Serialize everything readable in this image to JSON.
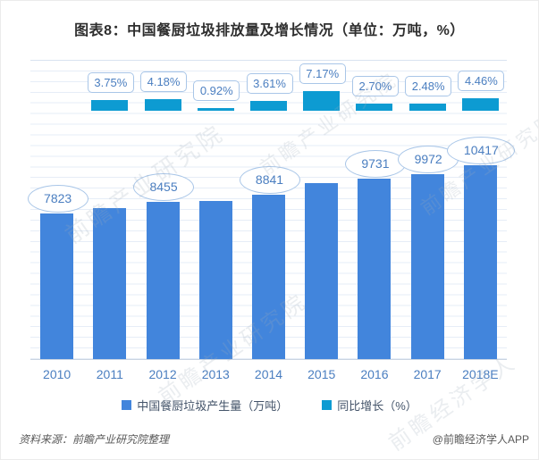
{
  "chart_data": {
    "type": "bar",
    "title": "图表8：中国餐厨垃圾排放量及增长情况（单位：万吨，%）",
    "categories": [
      "2010",
      "2011",
      "2012",
      "2013",
      "2014",
      "2015",
      "2016",
      "2017",
      "2018E"
    ],
    "series": [
      {
        "name": "中国餐厨垃圾产生量（万吨）",
        "axis": "left",
        "unit": "万吨",
        "color": "#4285dc",
        "values": [
          7823,
          8116,
          8455,
          8533,
          8841,
          9475,
          9731,
          9972,
          10417
        ],
        "data_labels": [
          "7823",
          null,
          "8455",
          null,
          "8841",
          null,
          "9731",
          "9972",
          "10417"
        ]
      },
      {
        "name": "同比增长（%）",
        "axis": "right",
        "unit": "%",
        "color": "#0d9bd2",
        "values": [
          null,
          3.75,
          4.18,
          0.92,
          3.61,
          7.17,
          2.7,
          2.48,
          4.46
        ],
        "data_labels": [
          null,
          "3.75%",
          "4.18%",
          "0.92%",
          "3.61%",
          "7.17%",
          "2.70%",
          "2.48%",
          "4.46%"
        ]
      }
    ],
    "grid": true,
    "axes_tick_labels_visible": false,
    "legend_position": "bottom"
  },
  "footer": {
    "source": "资料来源：前瞻产业研究院整理",
    "credit": "@前瞻经济学人APP"
  },
  "watermarks": [
    "前瞻产业研究院",
    "前瞻产业研究院",
    "前瞻产业研究院",
    "前瞻产业研究院",
    "前瞻经济学人"
  ]
}
